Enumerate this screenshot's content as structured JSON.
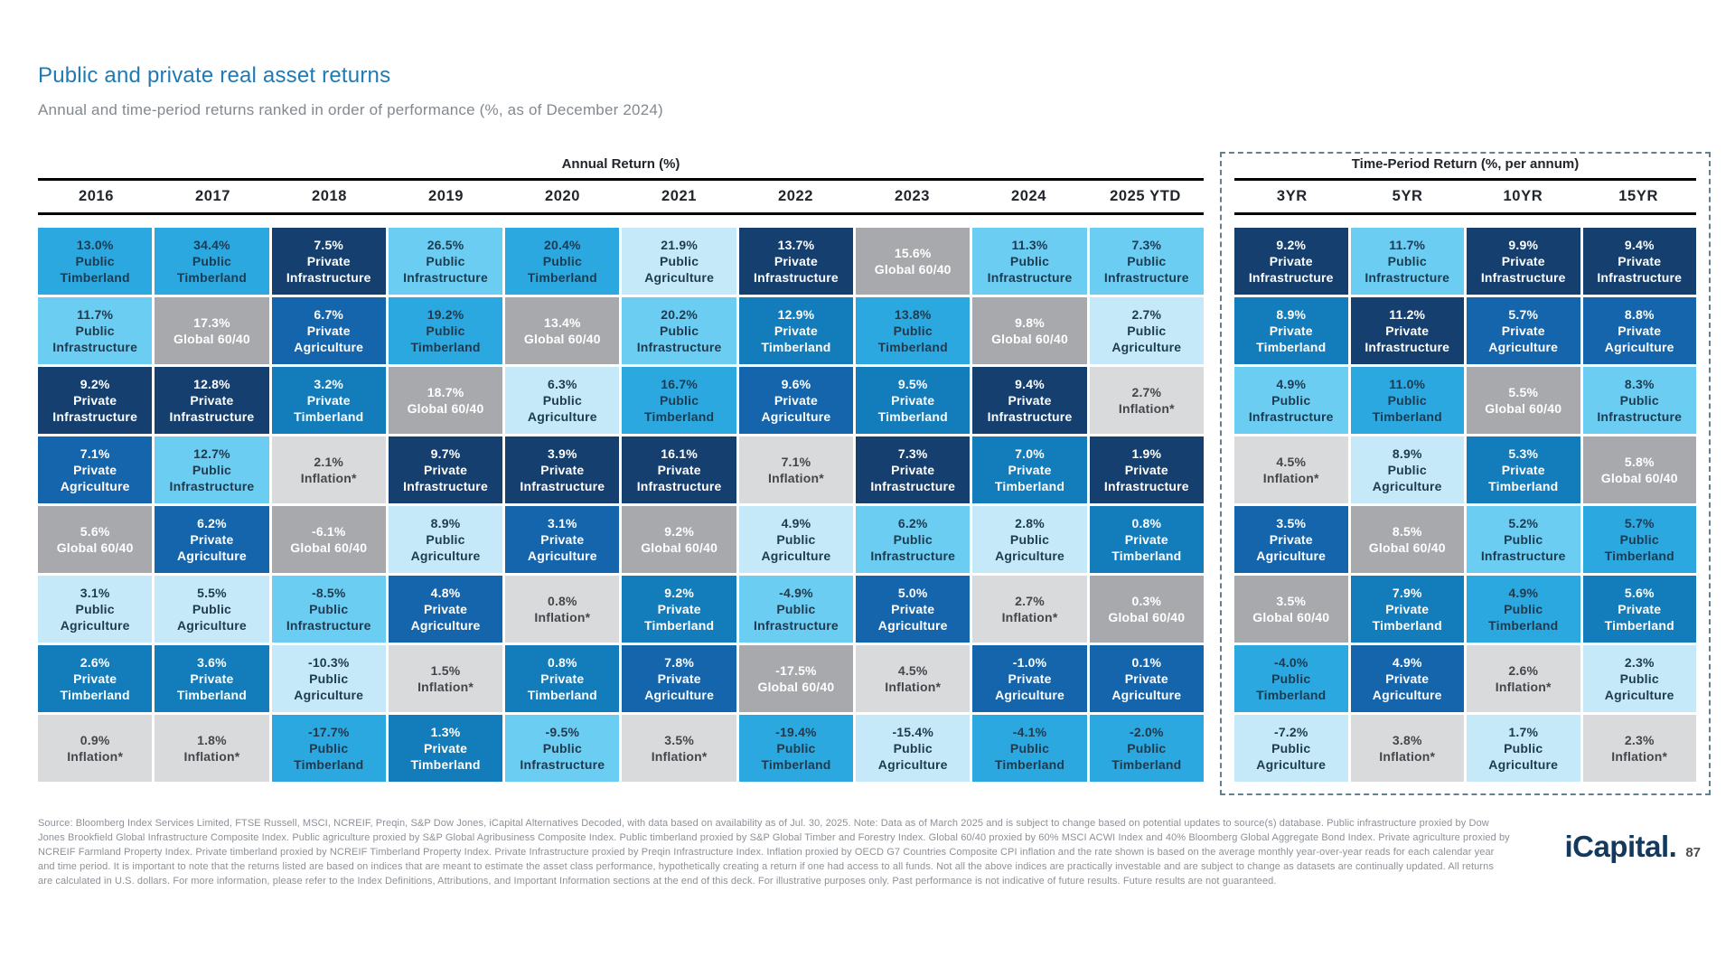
{
  "page": {
    "title": "Public and private real asset returns",
    "subtitle": "Annual and time-period returns ranked in order of performance (%, as of December 2024)",
    "footer": "Source: Bloomberg Index Services Limited, FTSE Russell, MSCI, NCREIF, Preqin, S&P Dow Jones, iCapital Alternatives Decoded, with data based on availability as of Jul. 30, 2025. Note: Data as of March 2025 and is subject to change based on potential updates to source(s) database. Public infrastructure proxied by Dow Jones Brookfield Global Infrastructure Composite Index. Public agriculture proxied by S&P Global Agribusiness Composite Index. Public timberland proxied by S&P Global Timber and Forestry Index. Global 60/40 proxied by 60% MSCI ACWI Index and 40% Bloomberg Global Aggregate Bond Index. Private agriculture proxied by NCREIF Farmland Property Index. Private timberland proxied by NCREIF Timberland Property Index. Private Infrastructure proxied by Preqin Infrastructure Index. Inflation proxied by OECD G7 Countries Composite CPI inflation and the rate shown is based on the average monthly year-over-year reads for each calendar year and time period. It is important to note that the returns listed are based on indices that are meant to estimate the asset class performance, hypothetically creating a return if one had access to all funds. Not all the above indices are practically investable and are subject to change as datasets are continually updated. All returns are calculated in U.S. dollars. For more information, please refer to the Index Definitions, Attributions, and Important Information sections at the end of this deck. For illustrative purposes only. Past performance is not indicative of future results. Future results are not guaranteed.",
    "logo": "iCapital.",
    "page_number": "87",
    "accent_blue": "#1E7AB5"
  },
  "chart_data": {
    "type": "table",
    "subtype": "performance-quilt",
    "as_of": "December 2024",
    "asset_classes": [
      {
        "name": "Public Timberland",
        "bg": "#2CA8E0",
        "fg": "#1E3A4F"
      },
      {
        "name": "Public Infrastructure",
        "bg": "#6CCDF3",
        "fg": "#1E3A4F"
      },
      {
        "name": "Public Agriculture",
        "bg": "#C6E9FA",
        "fg": "#1E3A4F"
      },
      {
        "name": "Private Infrastructure",
        "bg": "#153F6E",
        "fg": "#FFFFFF"
      },
      {
        "name": "Private Agriculture",
        "bg": "#1565AC",
        "fg": "#FFFFFF"
      },
      {
        "name": "Private Timberland",
        "bg": "#137CBB",
        "fg": "#FFFFFF"
      },
      {
        "name": "Global 60/40",
        "bg": "#A7A9AC",
        "fg": "#FFFFFF"
      },
      {
        "name": "Inflation*",
        "bg": "#D9DADB",
        "fg": "#43474C"
      }
    ],
    "annual": {
      "title": "Annual Return (%)",
      "columns": [
        {
          "label": "2016",
          "cells": [
            {
              "value": "13.0%",
              "asset": "Public Timberland"
            },
            {
              "value": "11.7%",
              "asset": "Public Infrastructure"
            },
            {
              "value": "9.2%",
              "asset": "Private Infrastructure"
            },
            {
              "value": "7.1%",
              "asset": "Private Agriculture"
            },
            {
              "value": "5.6%",
              "asset": "Global 60/40"
            },
            {
              "value": "3.1%",
              "asset": "Public Agriculture"
            },
            {
              "value": "2.6%",
              "asset": "Private Timberland"
            },
            {
              "value": "0.9%",
              "asset": "Inflation*"
            }
          ]
        },
        {
          "label": "2017",
          "cells": [
            {
              "value": "34.4%",
              "asset": "Public Timberland"
            },
            {
              "value": "17.3%",
              "asset": "Global 60/40"
            },
            {
              "value": "12.8%",
              "asset": "Private Infrastructure"
            },
            {
              "value": "12.7%",
              "asset": "Public Infrastructure"
            },
            {
              "value": "6.2%",
              "asset": "Private Agriculture"
            },
            {
              "value": "5.5%",
              "asset": "Public Agriculture"
            },
            {
              "value": "3.6%",
              "asset": "Private Timberland"
            },
            {
              "value": "1.8%",
              "asset": "Inflation*"
            }
          ]
        },
        {
          "label": "2018",
          "cells": [
            {
              "value": "7.5%",
              "asset": "Private Infrastructure"
            },
            {
              "value": "6.7%",
              "asset": "Private Agriculture"
            },
            {
              "value": "3.2%",
              "asset": "Private Timberland"
            },
            {
              "value": "2.1%",
              "asset": "Inflation*"
            },
            {
              "value": "-6.1%",
              "asset": "Global 60/40"
            },
            {
              "value": "-8.5%",
              "asset": "Public Infrastructure"
            },
            {
              "value": "-10.3%",
              "asset": "Public Agriculture"
            },
            {
              "value": "-17.7%",
              "asset": "Public Timberland"
            }
          ]
        },
        {
          "label": "2019",
          "cells": [
            {
              "value": "26.5%",
              "asset": "Public Infrastructure"
            },
            {
              "value": "19.2%",
              "asset": "Public Timberland"
            },
            {
              "value": "18.7%",
              "asset": "Global 60/40"
            },
            {
              "value": "9.7%",
              "asset": "Private Infrastructure"
            },
            {
              "value": "8.9%",
              "asset": "Public Agriculture"
            },
            {
              "value": "4.8%",
              "asset": "Private Agriculture"
            },
            {
              "value": "1.5%",
              "asset": "Inflation*"
            },
            {
              "value": "1.3%",
              "asset": "Private Timberland"
            }
          ]
        },
        {
          "label": "2020",
          "cells": [
            {
              "value": "20.4%",
              "asset": "Public Timberland"
            },
            {
              "value": "13.4%",
              "asset": "Global 60/40"
            },
            {
              "value": "6.3%",
              "asset": "Public Agriculture"
            },
            {
              "value": "3.9%",
              "asset": "Private Infrastructure"
            },
            {
              "value": "3.1%",
              "asset": "Private Agriculture"
            },
            {
              "value": "0.8%",
              "asset": "Inflation*"
            },
            {
              "value": "0.8%",
              "asset": "Private Timberland"
            },
            {
              "value": "-9.5%",
              "asset": "Public Infrastructure"
            }
          ]
        },
        {
          "label": "2021",
          "cells": [
            {
              "value": "21.9%",
              "asset": "Public Agriculture"
            },
            {
              "value": "20.2%",
              "asset": "Public Infrastructure"
            },
            {
              "value": "16.7%",
              "asset": "Public Timberland"
            },
            {
              "value": "16.1%",
              "asset": "Private Infrastructure"
            },
            {
              "value": "9.2%",
              "asset": "Global 60/40"
            },
            {
              "value": "9.2%",
              "asset": "Private Timberland"
            },
            {
              "value": "7.8%",
              "asset": "Private Agriculture"
            },
            {
              "value": "3.5%",
              "asset": "Inflation*"
            }
          ]
        },
        {
          "label": "2022",
          "cells": [
            {
              "value": "13.7%",
              "asset": "Private Infrastructure"
            },
            {
              "value": "12.9%",
              "asset": "Private Timberland"
            },
            {
              "value": "9.6%",
              "asset": "Private Agriculture"
            },
            {
              "value": "7.1%",
              "asset": "Inflation*"
            },
            {
              "value": "4.9%",
              "asset": "Public Agriculture"
            },
            {
              "value": "-4.9%",
              "asset": "Public Infrastructure"
            },
            {
              "value": "-17.5%",
              "asset": "Global 60/40"
            },
            {
              "value": "-19.4%",
              "asset": "Public Timberland"
            }
          ]
        },
        {
          "label": "2023",
          "cells": [
            {
              "value": "15.6%",
              "asset": "Global 60/40"
            },
            {
              "value": "13.8%",
              "asset": "Public Timberland"
            },
            {
              "value": "9.5%",
              "asset": "Private Timberland"
            },
            {
              "value": "7.3%",
              "asset": "Private Infrastructure"
            },
            {
              "value": "6.2%",
              "asset": "Public Infrastructure"
            },
            {
              "value": "5.0%",
              "asset": "Private Agriculture"
            },
            {
              "value": "4.5%",
              "asset": "Inflation*"
            },
            {
              "value": "-15.4%",
              "asset": "Public Agriculture"
            }
          ]
        },
        {
          "label": "2024",
          "cells": [
            {
              "value": "11.3%",
              "asset": "Public Infrastructure"
            },
            {
              "value": "9.8%",
              "asset": "Global 60/40"
            },
            {
              "value": "9.4%",
              "asset": "Private Infrastructure"
            },
            {
              "value": "7.0%",
              "asset": "Private Timberland"
            },
            {
              "value": "2.8%",
              "asset": "Public Agriculture"
            },
            {
              "value": "2.7%",
              "asset": "Inflation*"
            },
            {
              "value": "-1.0%",
              "asset": "Private Agriculture"
            },
            {
              "value": "-4.1%",
              "asset": "Public Timberland"
            }
          ]
        },
        {
          "label": "2025 YTD",
          "cells": [
            {
              "value": "7.3%",
              "asset": "Public Infrastructure"
            },
            {
              "value": "2.7%",
              "asset": "Public Agriculture"
            },
            {
              "value": "2.7%",
              "asset": "Inflation*"
            },
            {
              "value": "1.9%",
              "asset": "Private Infrastructure"
            },
            {
              "value": "0.8%",
              "asset": "Private Timberland"
            },
            {
              "value": "0.3%",
              "asset": "Global 60/40"
            },
            {
              "value": "0.1%",
              "asset": "Private Agriculture"
            },
            {
              "value": "-2.0%",
              "asset": "Public Timberland"
            }
          ]
        }
      ]
    },
    "time_period": {
      "title": "Time-Period Return (%, per annum)",
      "columns": [
        {
          "label": "3YR",
          "cells": [
            {
              "value": "9.2%",
              "asset": "Private Infrastructure"
            },
            {
              "value": "8.9%",
              "asset": "Private Timberland"
            },
            {
              "value": "4.9%",
              "asset": "Public Infrastructure"
            },
            {
              "value": "4.5%",
              "asset": "Inflation*"
            },
            {
              "value": "3.5%",
              "asset": "Private Agriculture"
            },
            {
              "value": "3.5%",
              "asset": "Global 60/40"
            },
            {
              "value": "-4.0%",
              "asset": "Public Timberland"
            },
            {
              "value": "-7.2%",
              "asset": "Public Agriculture"
            }
          ]
        },
        {
          "label": "5YR",
          "cells": [
            {
              "value": "11.7%",
              "asset": "Public Infrastructure"
            },
            {
              "value": "11.2%",
              "asset": "Private Infrastructure"
            },
            {
              "value": "11.0%",
              "asset": "Public Timberland"
            },
            {
              "value": "8.9%",
              "asset": "Public Agriculture"
            },
            {
              "value": "8.5%",
              "asset": "Global 60/40"
            },
            {
              "value": "7.9%",
              "asset": "Private Timberland"
            },
            {
              "value": "4.9%",
              "asset": "Private Agriculture"
            },
            {
              "value": "3.8%",
              "asset": "Inflation*"
            }
          ]
        },
        {
          "label": "10YR",
          "cells": [
            {
              "value": "9.9%",
              "asset": "Private Infrastructure"
            },
            {
              "value": "5.7%",
              "asset": "Private Agriculture"
            },
            {
              "value": "5.5%",
              "asset": "Global 60/40"
            },
            {
              "value": "5.3%",
              "asset": "Private Timberland"
            },
            {
              "value": "5.2%",
              "asset": "Public Infrastructure"
            },
            {
              "value": "4.9%",
              "asset": "Public Timberland"
            },
            {
              "value": "2.6%",
              "asset": "Inflation*"
            },
            {
              "value": "1.7%",
              "asset": "Public Agriculture"
            }
          ]
        },
        {
          "label": "15YR",
          "cells": [
            {
              "value": "9.4%",
              "asset": "Private Infrastructure"
            },
            {
              "value": "8.8%",
              "asset": "Private Agriculture"
            },
            {
              "value": "8.3%",
              "asset": "Public Infrastructure"
            },
            {
              "value": "5.8%",
              "asset": "Global 60/40"
            },
            {
              "value": "5.7%",
              "asset": "Public Timberland"
            },
            {
              "value": "5.6%",
              "asset": "Private Timberland"
            },
            {
              "value": "2.3%",
              "asset": "Public Agriculture"
            },
            {
              "value": "2.3%",
              "asset": "Inflation*"
            }
          ]
        }
      ]
    }
  }
}
